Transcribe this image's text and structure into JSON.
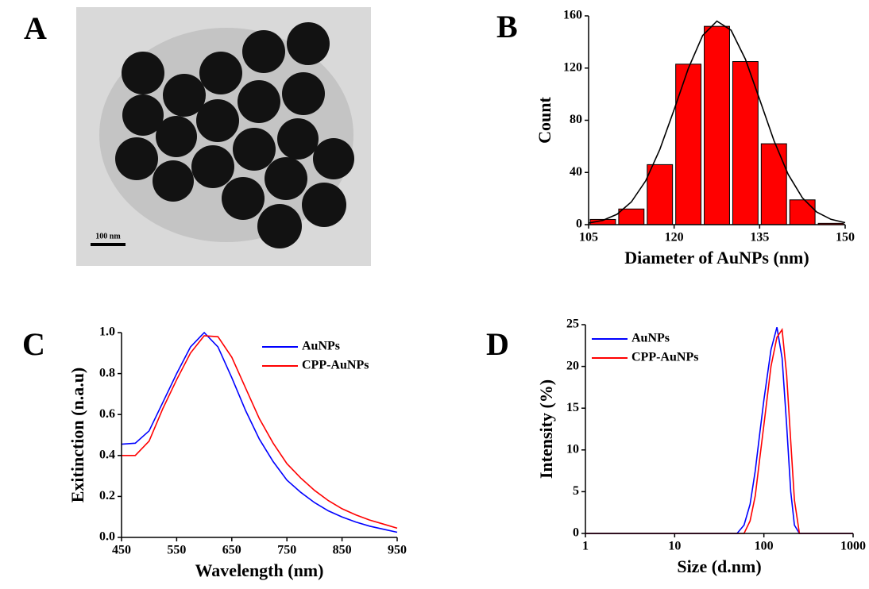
{
  "image": {
    "label": "A",
    "scale_bar": "100 nm"
  },
  "chart_data": [
    {
      "type": "histogram",
      "label": "B",
      "x_label": "Diameter of AuNPs (nm)",
      "y_label": "Count",
      "bins": [
        105,
        110,
        115,
        120,
        125,
        130,
        135,
        140,
        145,
        150
      ],
      "values": [
        4,
        12,
        46,
        123,
        152,
        125,
        62,
        19,
        1
      ],
      "color": "#ff0000",
      "fit": {
        "color": "#000000",
        "x": [
          105,
          107.5,
          110,
          112.5,
          115,
          117.5,
          120,
          122.5,
          125,
          127.5,
          130,
          132.5,
          135,
          137.5,
          140,
          142.5,
          145,
          147.5,
          150
        ],
        "values": [
          1.2,
          3.3,
          8.0,
          17.4,
          33.5,
          57.7,
          88.2,
          119.8,
          145,
          156,
          149,
          126.8,
          96,
          64.5,
          38.6,
          20.5,
          9.7,
          4.1,
          1.5
        ]
      },
      "xlim": [
        105,
        150
      ],
      "xticks": [
        105,
        120,
        135,
        150
      ],
      "ylim": [
        0,
        160
      ],
      "yticks": [
        0,
        40,
        80,
        120,
        160
      ],
      "grid": false
    },
    {
      "type": "line",
      "label": "C",
      "x_label": "Wavelength (nm)",
      "y_label": "Exitinction (n.a.u)",
      "x": [
        450,
        475,
        500,
        525,
        550,
        575,
        600,
        625,
        650,
        675,
        700,
        725,
        750,
        775,
        800,
        825,
        850,
        875,
        900,
        925,
        950
      ],
      "series": [
        {
          "name": "AuNPs",
          "color": "#0000ff",
          "values": [
            0.455,
            0.46,
            0.52,
            0.66,
            0.8,
            0.93,
            1.0,
            0.93,
            0.78,
            0.62,
            0.48,
            0.37,
            0.28,
            0.22,
            0.17,
            0.13,
            0.1,
            0.075,
            0.055,
            0.04,
            0.025
          ]
        },
        {
          "name": "CPP-AuNPs",
          "color": "#ff0000",
          "values": [
            0.4,
            0.4,
            0.47,
            0.63,
            0.77,
            0.9,
            0.985,
            0.98,
            0.88,
            0.73,
            0.58,
            0.46,
            0.36,
            0.29,
            0.23,
            0.18,
            0.14,
            0.11,
            0.085,
            0.065,
            0.045
          ]
        }
      ],
      "xlim": [
        450,
        950
      ],
      "xticks": [
        450,
        550,
        650,
        750,
        850,
        950
      ],
      "ylim": [
        0,
        1
      ],
      "yticks": [
        {
          "value": 0,
          "label": "0.0"
        },
        0.2,
        0.4,
        0.6,
        0.8,
        {
          "value": 1,
          "label": "1.0"
        }
      ],
      "legend": "upper right",
      "grid": false
    },
    {
      "type": "line",
      "label": "D",
      "x_label": "Size (d.nm)",
      "y_label": "Intensity (%)",
      "xscale": "log",
      "x": [
        1,
        50,
        60,
        70,
        80,
        90,
        100,
        120,
        140,
        160,
        180,
        200,
        220,
        250,
        1000
      ],
      "series": [
        {
          "name": "AuNPs",
          "color": "#0000ff",
          "values": [
            0,
            0,
            1.0,
            3.5,
            7.5,
            12,
            16,
            22,
            24.7,
            21,
            13,
            5,
            1,
            0,
            0
          ]
        },
        {
          "name": "CPP-AuNPs",
          "color": "#ff0000",
          "values": [
            0,
            0,
            0,
            1.5,
            4.5,
            9,
            13,
            20,
            23.5,
            24.4,
            19,
            11,
            4,
            0,
            0
          ]
        }
      ],
      "xlim": [
        1,
        1000
      ],
      "xticks": [
        1,
        10,
        100,
        1000
      ],
      "ylim": [
        0,
        25
      ],
      "yticks": [
        0,
        5,
        10,
        15,
        20,
        25
      ],
      "legend": "upper left",
      "grid": false
    }
  ]
}
